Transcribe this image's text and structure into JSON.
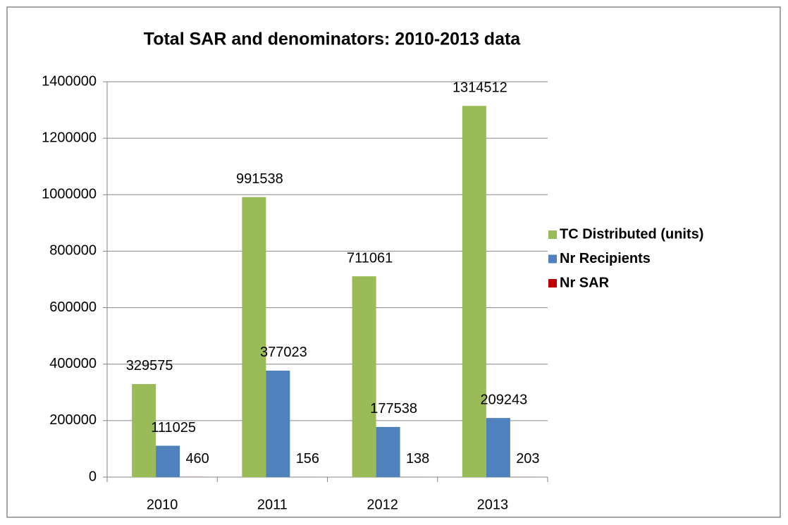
{
  "chart_data": {
    "type": "bar",
    "title": "Total SAR and denominators: 2010-2013 data",
    "categories": [
      "2010",
      "2011",
      "2012",
      "2013"
    ],
    "series": [
      {
        "name": "TC Distributed (units)",
        "color": "#9bbb59",
        "values": [
          329575,
          991538,
          711061,
          1314512
        ]
      },
      {
        "name": "Nr Recipients",
        "color": "#4f81bd",
        "values": [
          111025,
          377023,
          177538,
          209243
        ]
      },
      {
        "name": "Nr SAR",
        "color": "#c00000",
        "values": [
          460,
          156,
          138,
          203
        ]
      }
    ],
    "ylim": [
      0,
      1400000
    ],
    "yticks": [
      0,
      200000,
      400000,
      600000,
      800000,
      1000000,
      1200000,
      1400000
    ],
    "grid": true,
    "legend": "right"
  }
}
